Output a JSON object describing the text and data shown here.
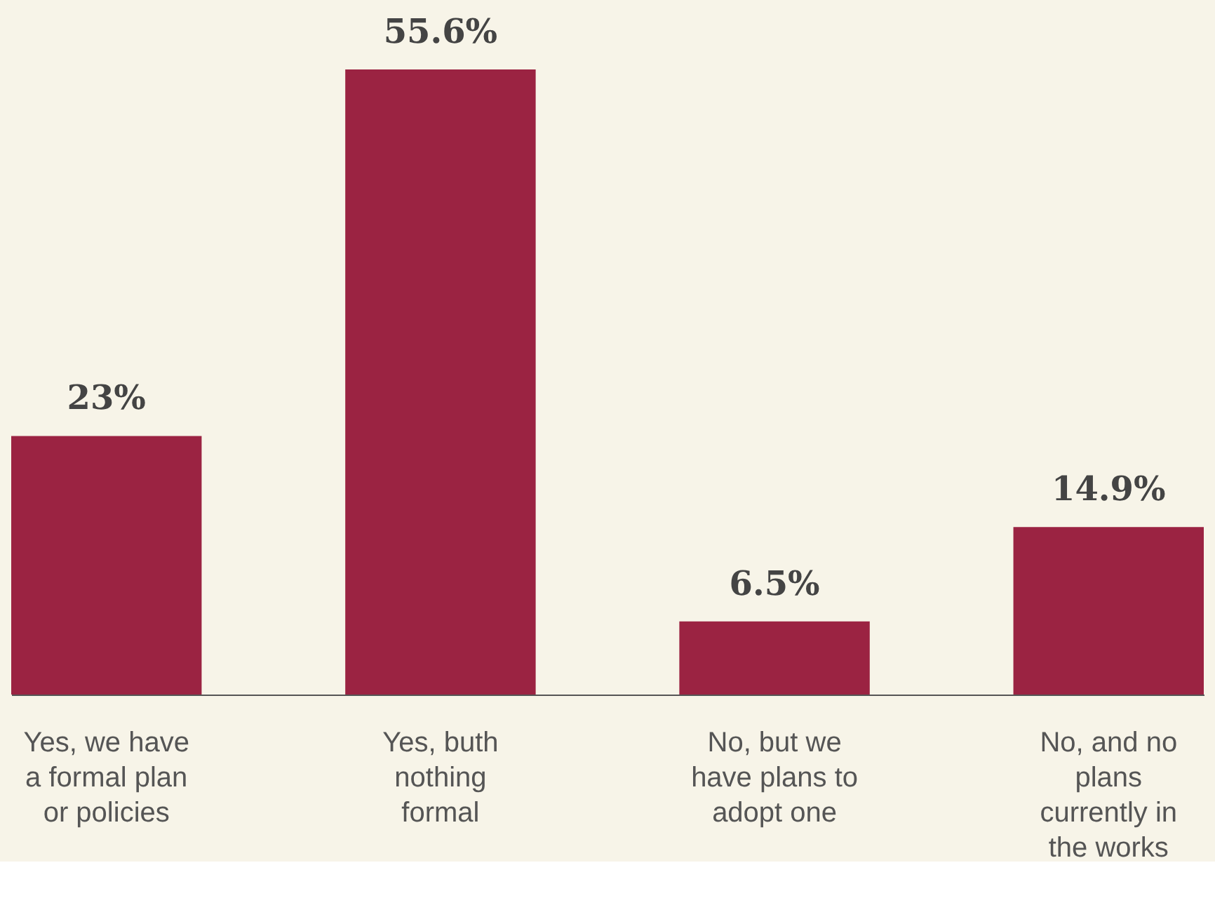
{
  "chart_data": {
    "type": "bar",
    "categories": [
      "Yes, we have a formal plan or policies",
      "Yes, buth nothing formal",
      "No, but we have plans to adopt one",
      "No, and no plans currently in the works"
    ],
    "values": [
      23,
      55.6,
      6.5,
      14.9
    ],
    "value_labels": [
      "23%",
      "55.6%",
      "6.5%",
      "14.9%"
    ],
    "color": "#9b2342"
  }
}
